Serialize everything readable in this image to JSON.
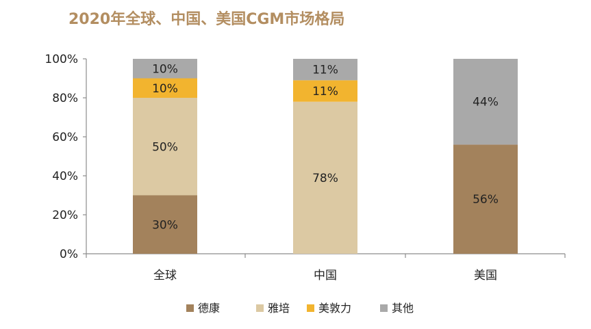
{
  "chart_data": {
    "type": "bar",
    "stacked": true,
    "percent": true,
    "title": "2020年全球、中国、美国CGM市场格局",
    "categories": [
      "全球",
      "中国",
      "美国"
    ],
    "ylim": [
      0,
      100
    ],
    "yticks": [
      0,
      20,
      40,
      60,
      80,
      100
    ],
    "ytick_labels": [
      "0%",
      "20%",
      "40%",
      "60%",
      "80%",
      "100%"
    ],
    "grid": false,
    "legend_position": "bottom",
    "series": [
      {
        "name": "德康",
        "color": "#a3825c",
        "values": [
          30,
          0,
          56
        ]
      },
      {
        "name": "雅培",
        "color": "#dcc9a3",
        "values": [
          50,
          78,
          0
        ]
      },
      {
        "name": "美敦力",
        "color": "#f2b42f",
        "values": [
          10,
          11,
          0
        ]
      },
      {
        "name": "其他",
        "color": "#a9a9a9",
        "values": [
          10,
          11,
          44
        ]
      }
    ]
  }
}
